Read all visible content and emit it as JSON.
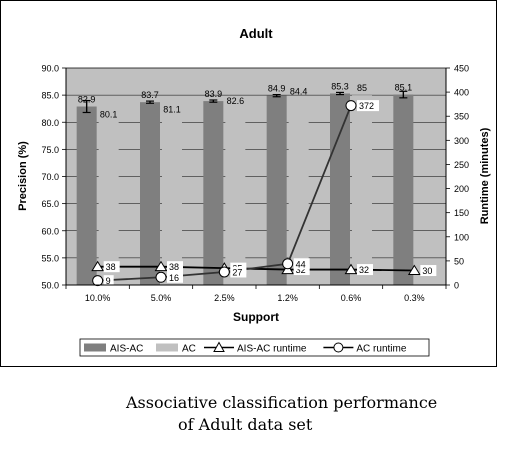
{
  "chart_data": {
    "type": "bar",
    "title": "Adult",
    "xlabel": "Support",
    "ylabel": "Precision (%)",
    "y2label": "Runtime (minutes)",
    "categories": [
      "10.0%",
      "5.0%",
      "2.5%",
      "1.2%",
      "0.6%",
      "0.3%"
    ],
    "ylim": [
      50.0,
      90.0
    ],
    "y2lim": [
      0,
      450
    ],
    "yticks": [
      "50.0",
      "55.0",
      "60.0",
      "65.0",
      "70.0",
      "75.0",
      "80.0",
      "85.0",
      "90.0"
    ],
    "y2ticks": [
      "0",
      "50",
      "100",
      "150",
      "200",
      "250",
      "300",
      "350",
      "400",
      "450"
    ],
    "grid": true,
    "legend_position": "bottom",
    "series": [
      {
        "name": "AIS-AC",
        "kind": "bar",
        "axis": "left",
        "color": "#7f7f7f",
        "values": [
          82.9,
          83.7,
          83.9,
          84.9,
          85.3,
          85.1
        ],
        "labels": [
          "82.9",
          "83.7",
          "83.9",
          "84.9",
          "85.3",
          "85.1"
        ],
        "error": [
          1.1,
          0.2,
          0.2,
          0.2,
          0.2,
          0.6
        ]
      },
      {
        "name": "AC",
        "kind": "bar",
        "axis": "left",
        "color": "#c0c0c0",
        "values": [
          80.1,
          81.1,
          82.6,
          84.4,
          85,
          null
        ],
        "labels": [
          "80.1",
          "81.1",
          "82.6",
          "84.4",
          "85",
          ""
        ]
      },
      {
        "name": "AIS-AC runtime",
        "kind": "line",
        "axis": "right",
        "marker": "triangle",
        "color": "#000000",
        "values": [
          38,
          38,
          35,
          32,
          32,
          30
        ],
        "labels": [
          "38",
          "38",
          "35",
          "32",
          "32",
          "30"
        ]
      },
      {
        "name": "AC runtime",
        "kind": "line",
        "axis": "right",
        "marker": "circle",
        "color": "#333333",
        "values": [
          9,
          16,
          27,
          44,
          372,
          null
        ],
        "labels": [
          "9",
          "16",
          "27",
          "44",
          "372",
          ""
        ]
      }
    ]
  },
  "caption": {
    "line1": "Associative classification performance",
    "line2": "of Adult data set"
  }
}
